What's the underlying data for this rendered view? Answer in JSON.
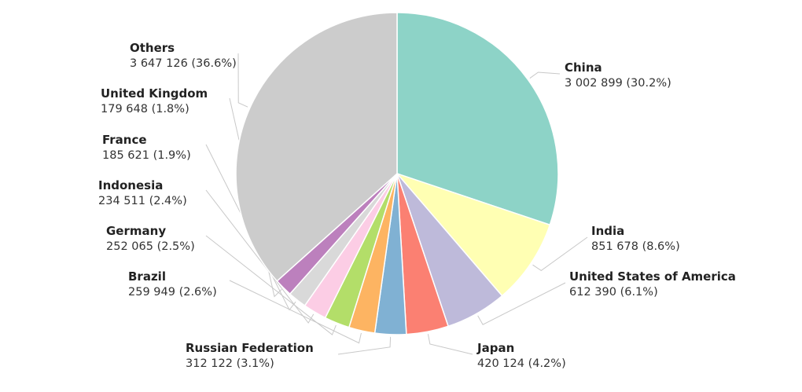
{
  "chart_data": {
    "type": "pie",
    "title": "",
    "start": "top",
    "direction": "clockwise",
    "slices": [
      {
        "name": "China",
        "value": 3002899,
        "value_text": "3 002 899 (30.2%)",
        "percent": 30.2,
        "color": "#8dd3c7"
      },
      {
        "name": "India",
        "value": 851678,
        "value_text": "851 678 (8.6%)",
        "percent": 8.6,
        "color": "#ffffb3"
      },
      {
        "name": "United States of America",
        "value": 612390,
        "value_text": "612 390 (6.1%)",
        "percent": 6.1,
        "color": "#bebada"
      },
      {
        "name": "Japan",
        "value": 420124,
        "value_text": "420 124 (4.2%)",
        "percent": 4.2,
        "color": "#fb8072"
      },
      {
        "name": "Russian Federation",
        "value": 312122,
        "value_text": "312 122 (3.1%)",
        "percent": 3.1,
        "color": "#80b1d3"
      },
      {
        "name": "Brazil",
        "value": 259949,
        "value_text": "259 949 (2.6%)",
        "percent": 2.6,
        "color": "#fdb462"
      },
      {
        "name": "Germany",
        "value": 252065,
        "value_text": "252 065 (2.5%)",
        "percent": 2.5,
        "color": "#b3de69"
      },
      {
        "name": "Indonesia",
        "value": 234511,
        "value_text": "234 511 (2.4%)",
        "percent": 2.4,
        "color": "#fccde5"
      },
      {
        "name": "France",
        "value": 185621,
        "value_text": "185 621 (1.9%)",
        "percent": 1.9,
        "color": "#d9d9d9"
      },
      {
        "name": "United Kingdom",
        "value": 179648,
        "value_text": "179 648 (1.8%)",
        "percent": 1.8,
        "color": "#bc80bd"
      },
      {
        "name": "Others",
        "value": 3647126,
        "value_text": "3 647 126 (36.6%)",
        "percent": 36.6,
        "color": "#cccccc"
      }
    ]
  }
}
